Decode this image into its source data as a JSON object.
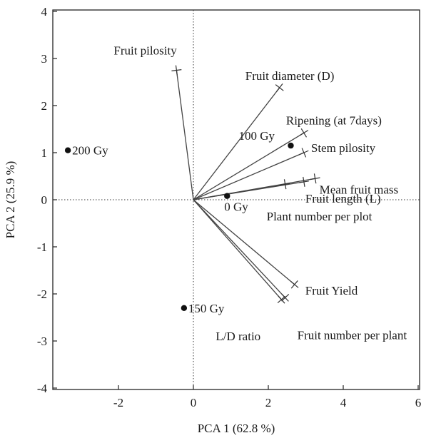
{
  "chart_data": {
    "type": "scatter",
    "subtype": "pca-biplot",
    "title": "",
    "xlabel": "PCA 1  (62.8 %)",
    "ylabel": "PCA 2  (25.9 %)",
    "xlim": [
      -3.5,
      6.8
    ],
    "ylim": [
      -4.1,
      4.1
    ],
    "xticks": [
      -2,
      0,
      2,
      4,
      6
    ],
    "yticks": [
      -4,
      -3,
      -2,
      -1,
      0,
      1,
      2,
      3,
      4
    ],
    "grid": false,
    "zero_lines": "dotted",
    "points": [
      {
        "label": "200 Gy",
        "x": -3.35,
        "y": 1.05
      },
      {
        "label": "100 Gy",
        "x": 2.6,
        "y": 1.15
      },
      {
        "label": "0 Gy",
        "x": 0.9,
        "y": 0.08
      },
      {
        "label": "150 Gy",
        "x": -0.25,
        "y": -2.3
      }
    ],
    "vectors": [
      {
        "label": "Fruit pilosity",
        "x": -0.45,
        "y": 2.75
      },
      {
        "label": "Fruit diameter (D)",
        "x": 2.3,
        "y": 2.38
      },
      {
        "label": "Ripening (at 7days)",
        "x": 2.95,
        "y": 1.42
      },
      {
        "label": "Stem  pilosity",
        "x": 2.95,
        "y": 1.0
      },
      {
        "label": "Mean fruit mass",
        "x": 3.25,
        "y": 0.45
      },
      {
        "label": "Fruit length (L)",
        "x": 2.95,
        "y": 0.38
      },
      {
        "label": "Plant number per plot",
        "x": 2.45,
        "y": 0.33
      },
      {
        "label": "Fruit Yield",
        "x": 2.7,
        "y": -1.8
      },
      {
        "label": "L/D ratio",
        "x": 2.35,
        "y": -2.12
      },
      {
        "label": "Fruit number per plant",
        "x": 2.45,
        "y": -2.08
      }
    ]
  }
}
